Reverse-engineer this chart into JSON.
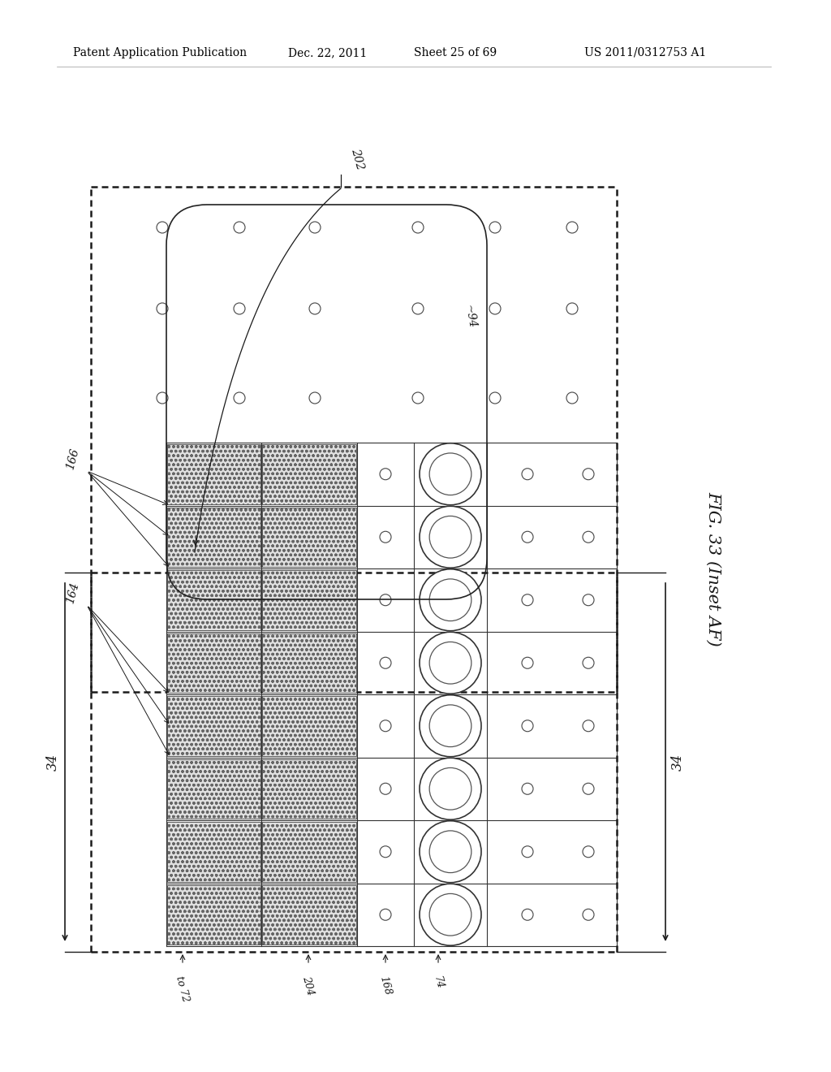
{
  "bg_color": "#ffffff",
  "header_text": "Patent Application Publication",
  "header_date": "Dec. 22, 2011",
  "header_sheet": "Sheet 25 of 69",
  "header_patent": "US 2011/0312753 A1",
  "fig_label": "FIG. 33 (Inset AF)",
  "label_202": "202",
  "label_94": "~94",
  "label_166": "166",
  "label_164": "164",
  "label_34_left": "34",
  "label_34_right": "34",
  "label_to72": "to 72",
  "label_204": "204",
  "label_168": "168",
  "label_74": "74",
  "lc": "#1a1a1a"
}
